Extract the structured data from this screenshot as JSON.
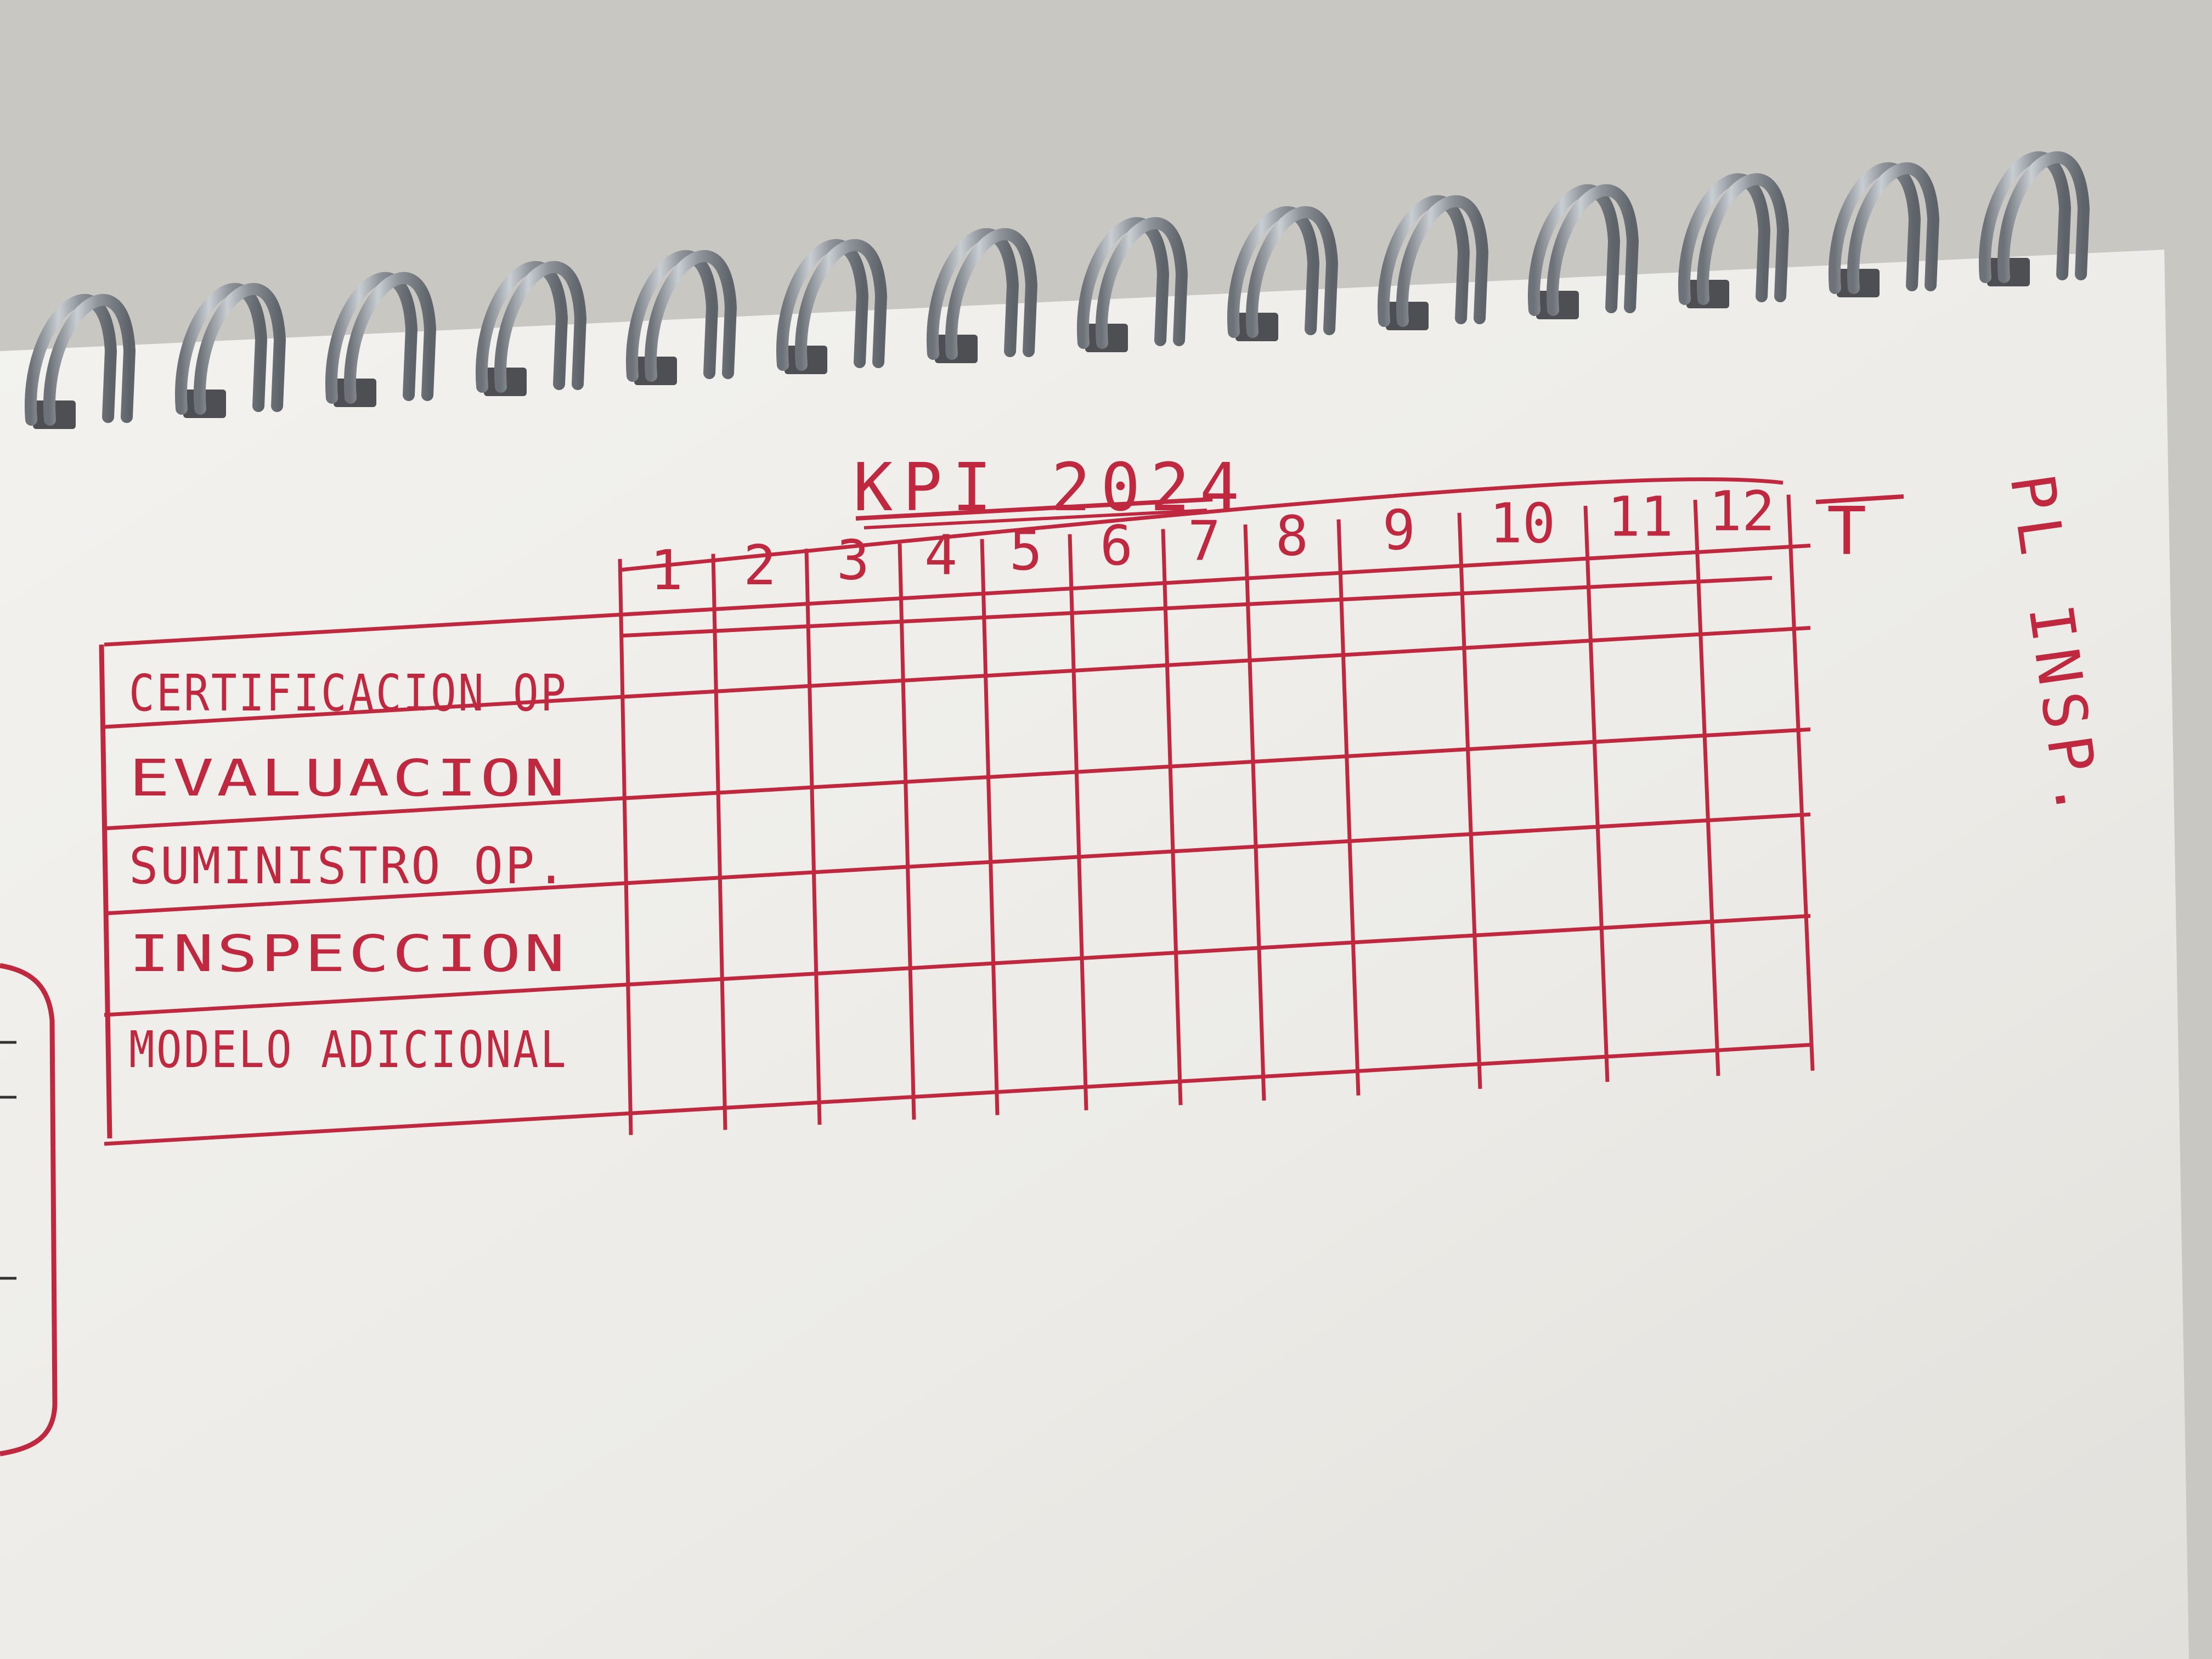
{
  "photo": {
    "subject": "spiral notebook page with handwritten table in red ink",
    "ink_color": "#c0283f",
    "paper_color": "#f2f1ee",
    "background_color": "#c9c7c2",
    "coil_color": "#9aa0a6"
  },
  "notebook": {
    "title": "KPI 2024",
    "side_note": "PL INSP.",
    "header_mark": "T",
    "columns": [
      "1",
      "2",
      "3",
      "4",
      "5",
      "6",
      "7",
      "8",
      "9",
      "10",
      "11",
      "12"
    ],
    "rows": [
      "CERTIFICACION OP",
      "EVALUACION",
      "SUMINISTRO OP.",
      "INSPECCION",
      "MODELO ADICIONAL"
    ]
  }
}
